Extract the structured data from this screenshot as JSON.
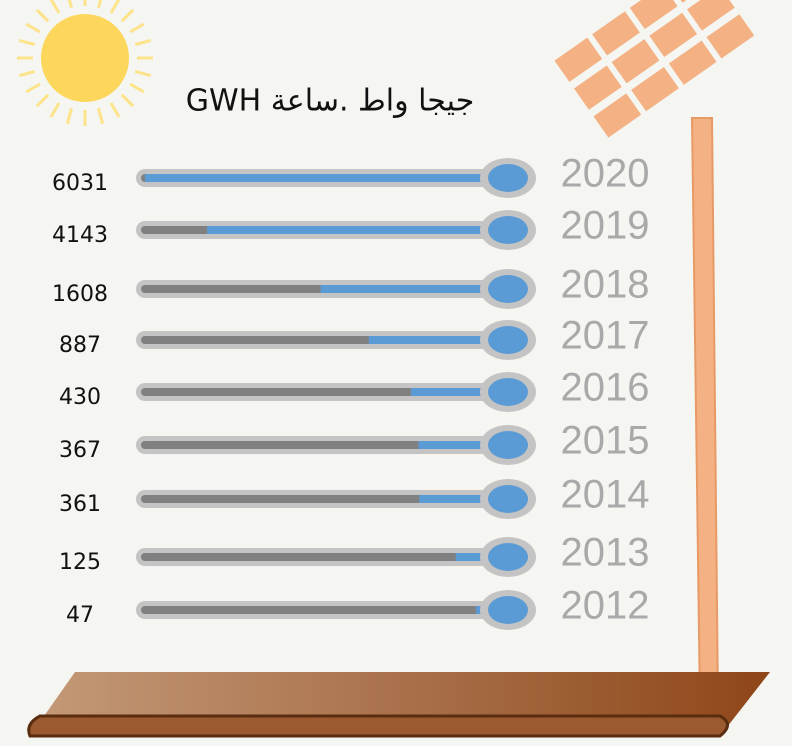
{
  "chart_data": {
    "type": "bar",
    "title": "جيجا واط .ساعة GWH",
    "categories": [
      "2020",
      "2019",
      "2018",
      "2017",
      "2016",
      "2015",
      "2014",
      "2013",
      "2012"
    ],
    "values": [
      6031,
      4143,
      1608,
      887,
      430,
      367,
      361,
      125,
      47
    ],
    "color": "#5b9bd5",
    "scale": "sqrt",
    "xlim": [
      0,
      6031
    ]
  }
}
